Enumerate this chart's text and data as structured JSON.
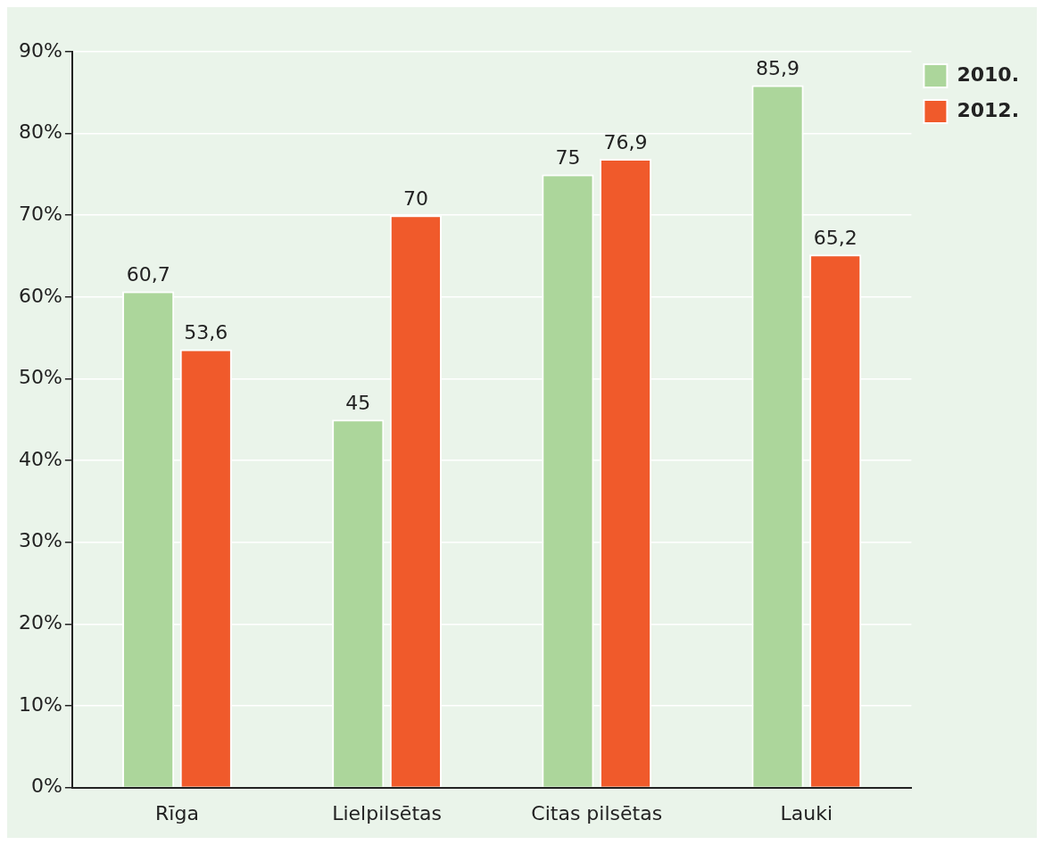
{
  "chart_data": {
    "type": "bar",
    "categories": [
      "Rīga",
      "Lielpilsētas",
      "Citas pilsētas",
      "Lauki"
    ],
    "series": [
      {
        "name": "2010.",
        "color": "#acd69b",
        "values": [
          60.7,
          45,
          75,
          85.9
        ],
        "value_labels": [
          "60,7",
          "45",
          "75",
          "85,9"
        ]
      },
      {
        "name": "2012.",
        "color": "#f05a2b",
        "values": [
          53.6,
          70,
          76.9,
          65.2
        ],
        "value_labels": [
          "53,6",
          "70",
          "76,9",
          "65,2"
        ]
      }
    ],
    "ylim": [
      0,
      90
    ],
    "yticks": [
      {
        "value": 0,
        "label": "0%"
      },
      {
        "value": 10,
        "label": "10%"
      },
      {
        "value": 20,
        "label": "20%"
      },
      {
        "value": 30,
        "label": "30%"
      },
      {
        "value": 40,
        "label": "40%"
      },
      {
        "value": 50,
        "label": "50%"
      },
      {
        "value": 60,
        "label": "60%"
      },
      {
        "value": 70,
        "label": "70%"
      },
      {
        "value": 80,
        "label": "80%"
      },
      {
        "value": 90,
        "label": "90%"
      }
    ],
    "grid": "y",
    "legend": "top right"
  }
}
